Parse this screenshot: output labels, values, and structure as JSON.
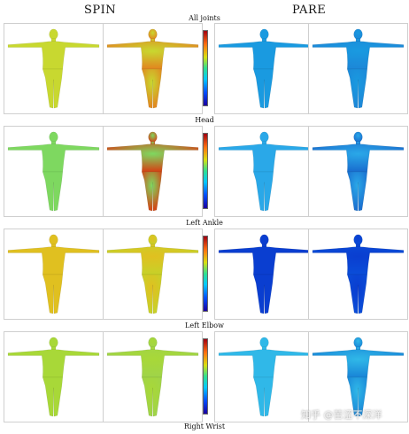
{
  "headers": {
    "left": "SPIN",
    "right": "PARE"
  },
  "rows": [
    {
      "label": "All joints"
    },
    {
      "label": "Head"
    },
    {
      "label": "Left Ankle"
    },
    {
      "label": "Left Elbow"
    }
  ],
  "bottom_label": "Right Wrist",
  "watermark": "知乎 @苦涩不深洋",
  "colorbar_ticks": [
    "",
    "",
    "",
    "",
    "",
    "",
    "",
    ""
  ],
  "colors": {
    "spin_row1_a": "#c8d830",
    "spin_row1_b": "#e08a20",
    "spin_row2_a": "#7ed860",
    "spin_row2_b": "#d04a18",
    "spin_row3_a": "#e0c020",
    "spin_row3_b": "#c8d028",
    "spin_row4_a": "#a8d838",
    "spin_row4_b": "#a0d448",
    "pare_row1_a": "#1a9ae0",
    "pare_row1_b": "#1c88d8",
    "pare_row2_a": "#2aa8e8",
    "pare_row2_b": "#1a70d0",
    "pare_row3_a": "#0a3ed0",
    "pare_row3_b": "#0a4cd8",
    "pare_row4_a": "#30b8e8",
    "pare_row4_b": "#1a88d8"
  }
}
